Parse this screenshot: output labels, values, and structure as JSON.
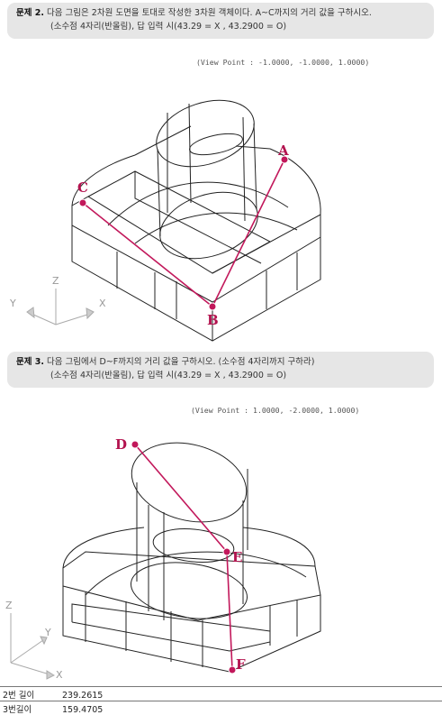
{
  "problem2": {
    "label": "문제 2.",
    "text": "다음 그림은 2차원 도면을 토대로 작성한 3차원 객체이다. A~C까지의 거리 값을 구하시오.",
    "note": "(소수점 4자리(반올림), 답 입력 시(43.29 = X , 43.2900 = O)",
    "viewpoint": "(View Point : -1.0000, -1.0000, 1.0000)",
    "points": [
      "A",
      "B",
      "C"
    ],
    "axes": [
      "Z",
      "Y",
      "X"
    ]
  },
  "problem3": {
    "label": "문제 3.",
    "text": "다음 그림에서 D~F까지의 거리 값을 구하시오. (소수점 4자리까지 구하라)",
    "note": "(소수점 4자리(반올림), 답 입력 시(43.29 = X , 43.2900 = O)",
    "viewpoint": "(View Point : 1.0000, -2.0000, 1.0000)",
    "points": [
      "D",
      "E",
      "F"
    ],
    "axes": [
      "Z",
      "Y",
      "X"
    ]
  },
  "answers": [
    {
      "label": "2번 길이",
      "value": "239.2615"
    },
    {
      "label": "3번길이",
      "value": "159.4705"
    }
  ],
  "colors": {
    "accent": "#c2185b",
    "line": "#222222",
    "box": "#e6e6e6"
  }
}
